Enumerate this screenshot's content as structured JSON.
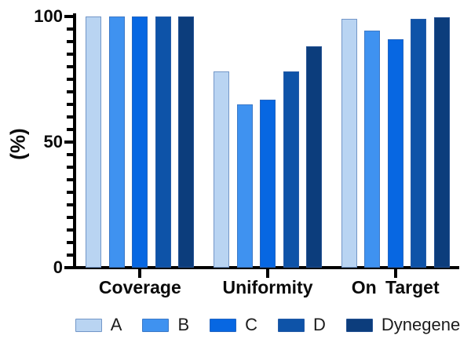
{
  "chart_data": {
    "type": "bar",
    "title": "",
    "ylabel": "(%)",
    "xlabel": "",
    "ylim": [
      0,
      100
    ],
    "yticks_major": [
      0,
      50,
      100
    ],
    "ytick_minor_step": 5,
    "grid": false,
    "legend_position": "bottom",
    "categories": [
      "Coverage",
      "Uniformity",
      "On Target"
    ],
    "series": [
      {
        "name": "A",
        "color": "#b9d4f2",
        "values": [
          100,
          78,
          99
        ]
      },
      {
        "name": "B",
        "color": "#3f92f0",
        "values": [
          100,
          65,
          94.5
        ]
      },
      {
        "name": "C",
        "color": "#0767e2",
        "values": [
          100,
          67,
          91
        ]
      },
      {
        "name": "D",
        "color": "#0e53a8",
        "values": [
          100,
          78,
          99
        ]
      },
      {
        "name": "Dynegene",
        "color": "#0c3d7c",
        "values": [
          100,
          88,
          99.8
        ]
      }
    ],
    "axis_color": "#000000"
  }
}
